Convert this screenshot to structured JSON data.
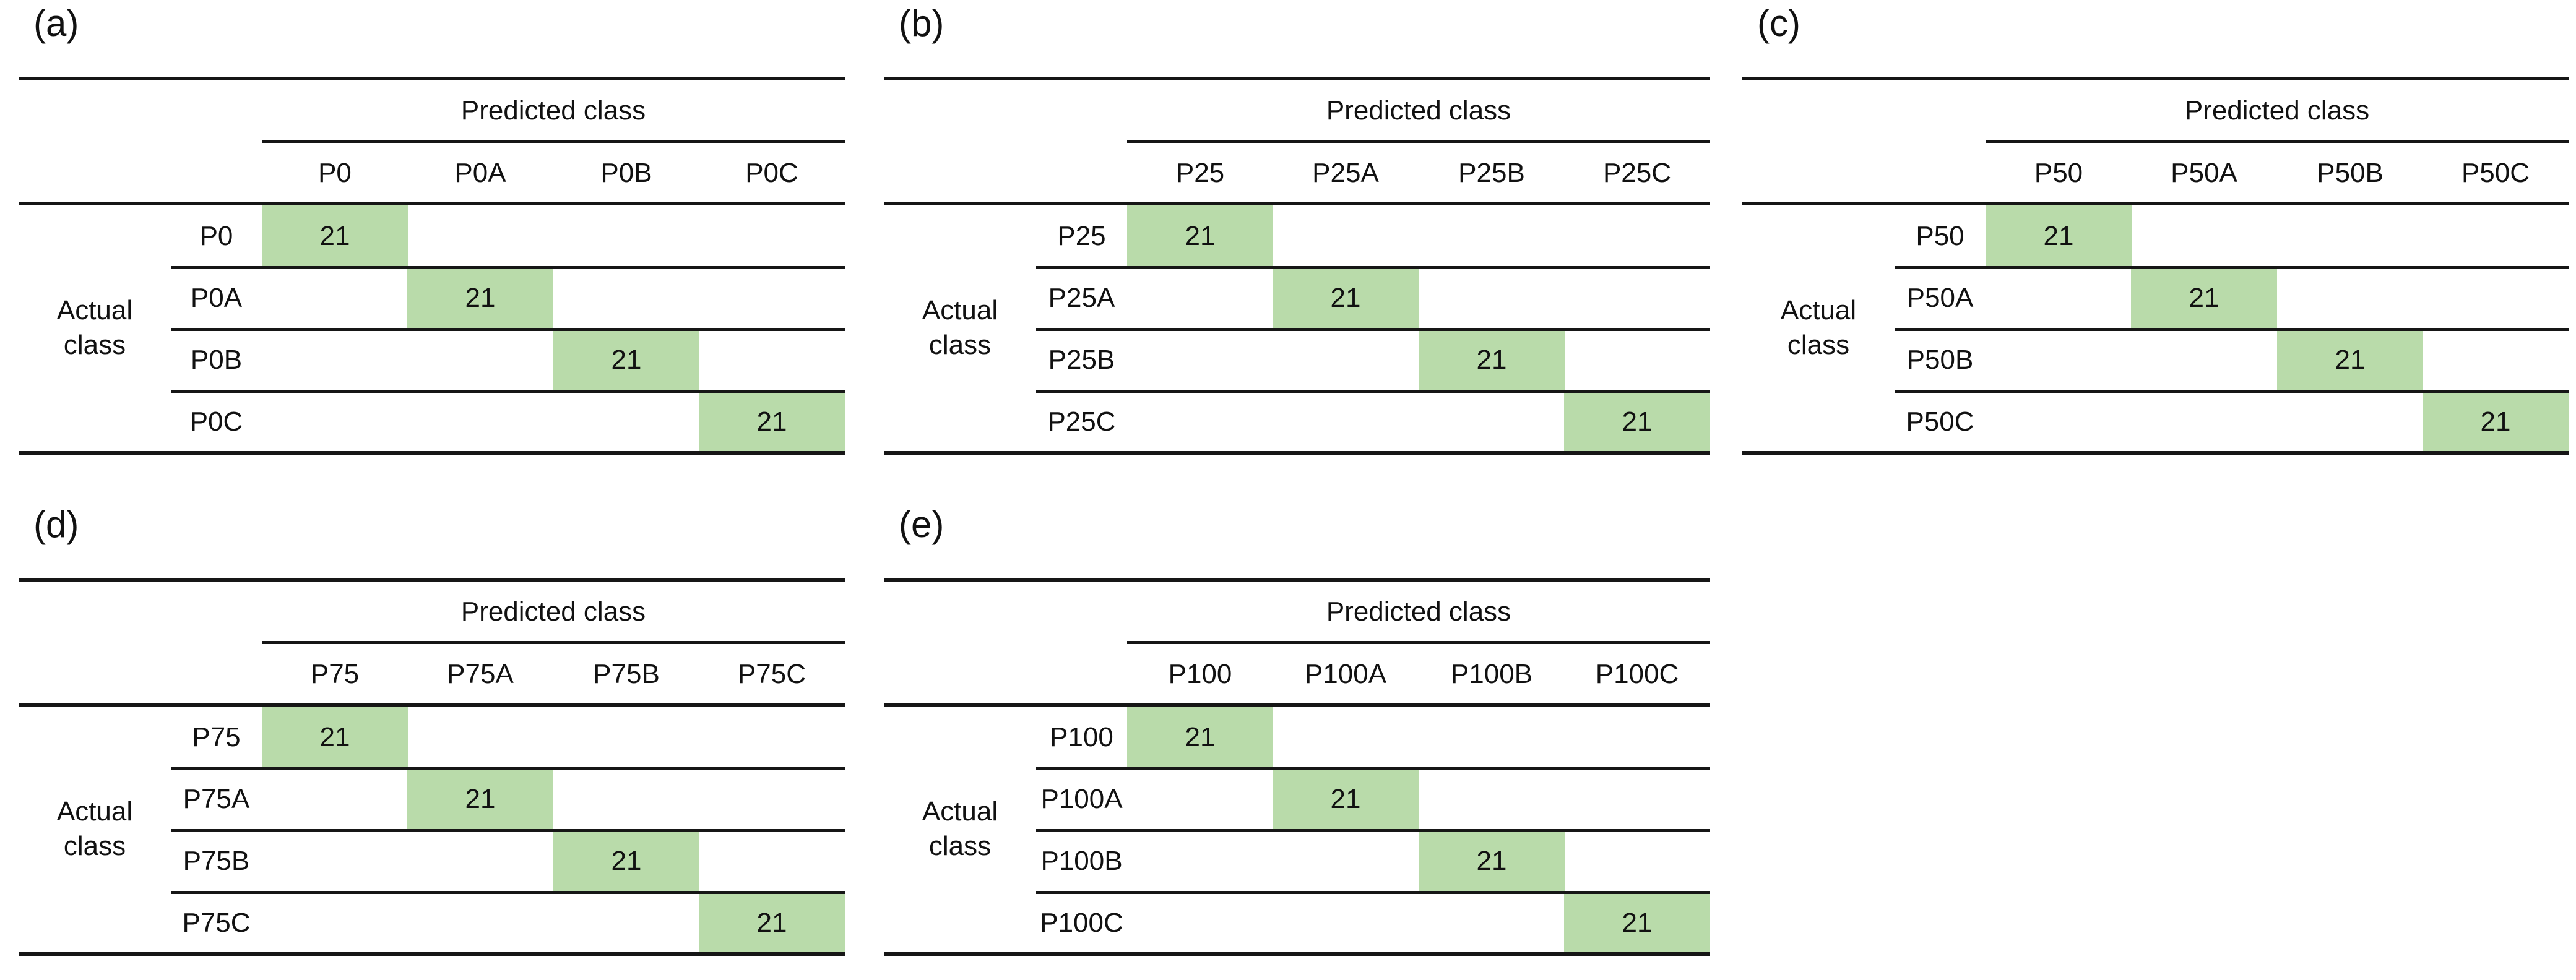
{
  "colors": {
    "highlight_green": "#b9dbaa",
    "rule_color": "#161616",
    "text_color": "#111111",
    "background": "#ffffff"
  },
  "shared": {
    "predicted_header": "Predicted class",
    "actual_line1": "Actual",
    "actual_line2": "class",
    "diagonal_value": "21"
  },
  "panels": [
    {
      "label": "(a)",
      "col_headers": [
        "P0",
        "P0A",
        "P0B",
        "P0C"
      ],
      "rows": [
        {
          "label": "P0",
          "cells": [
            "21",
            "",
            "",
            ""
          ]
        },
        {
          "label": "P0A",
          "cells": [
            "",
            "21",
            "",
            ""
          ]
        },
        {
          "label": "P0B",
          "cells": [
            "",
            "",
            "21",
            ""
          ]
        },
        {
          "label": "P0C",
          "cells": [
            "",
            "",
            "",
            "21"
          ]
        }
      ]
    },
    {
      "label": "(b)",
      "col_headers": [
        "P25",
        "P25A",
        "P25B",
        "P25C"
      ],
      "rows": [
        {
          "label": "P25",
          "cells": [
            "21",
            "",
            "",
            ""
          ]
        },
        {
          "label": "P25A",
          "cells": [
            "",
            "21",
            "",
            ""
          ]
        },
        {
          "label": "P25B",
          "cells": [
            "",
            "",
            "21",
            ""
          ]
        },
        {
          "label": "P25C",
          "cells": [
            "",
            "",
            "",
            "21"
          ]
        }
      ]
    },
    {
      "label": "(c)",
      "col_headers": [
        "P50",
        "P50A",
        "P50B",
        "P50C"
      ],
      "rows": [
        {
          "label": "P50",
          "cells": [
            "21",
            "",
            "",
            ""
          ]
        },
        {
          "label": "P50A",
          "cells": [
            "",
            "21",
            "",
            ""
          ]
        },
        {
          "label": "P50B",
          "cells": [
            "",
            "",
            "21",
            ""
          ]
        },
        {
          "label": "P50C",
          "cells": [
            "",
            "",
            "",
            "21"
          ]
        }
      ]
    },
    {
      "label": "(d)",
      "col_headers": [
        "P75",
        "P75A",
        "P75B",
        "P75C"
      ],
      "rows": [
        {
          "label": "P75",
          "cells": [
            "21",
            "",
            "",
            ""
          ]
        },
        {
          "label": "P75A",
          "cells": [
            "",
            "21",
            "",
            ""
          ]
        },
        {
          "label": "P75B",
          "cells": [
            "",
            "",
            "21",
            ""
          ]
        },
        {
          "label": "P75C",
          "cells": [
            "",
            "",
            "",
            "21"
          ]
        }
      ]
    },
    {
      "label": "(e)",
      "col_headers": [
        "P100",
        "P100A",
        "P100B",
        "P100C"
      ],
      "rows": [
        {
          "label": "P100",
          "cells": [
            "21",
            "",
            "",
            ""
          ]
        },
        {
          "label": "P100A",
          "cells": [
            "",
            "21",
            "",
            ""
          ]
        },
        {
          "label": "P100B",
          "cells": [
            "",
            "",
            "21",
            ""
          ]
        },
        {
          "label": "P100C",
          "cells": [
            "",
            "",
            "",
            "21"
          ]
        }
      ]
    }
  ],
  "chart_data": [
    {
      "type": "table",
      "title": "(a)",
      "col_axis_label": "Predicted class",
      "row_axis_label": "Actual class",
      "col_categories": [
        "P0",
        "P0A",
        "P0B",
        "P0C"
      ],
      "row_categories": [
        "P0",
        "P0A",
        "P0B",
        "P0C"
      ],
      "matrix": [
        [
          21,
          null,
          null,
          null
        ],
        [
          null,
          21,
          null,
          null
        ],
        [
          null,
          null,
          21,
          null
        ],
        [
          null,
          null,
          null,
          21
        ]
      ],
      "highlighted_cells": "diagonal",
      "highlight_color": "#b9dbaa"
    },
    {
      "type": "table",
      "title": "(b)",
      "col_axis_label": "Predicted class",
      "row_axis_label": "Actual class",
      "col_categories": [
        "P25",
        "P25A",
        "P25B",
        "P25C"
      ],
      "row_categories": [
        "P25",
        "P25A",
        "P25B",
        "P25C"
      ],
      "matrix": [
        [
          21,
          null,
          null,
          null
        ],
        [
          null,
          21,
          null,
          null
        ],
        [
          null,
          null,
          21,
          null
        ],
        [
          null,
          null,
          null,
          21
        ]
      ],
      "highlighted_cells": "diagonal",
      "highlight_color": "#b9dbaa"
    },
    {
      "type": "table",
      "title": "(c)",
      "col_axis_label": "Predicted class",
      "row_axis_label": "Actual class",
      "col_categories": [
        "P50",
        "P50A",
        "P50B",
        "P50C"
      ],
      "row_categories": [
        "P50",
        "P50A",
        "P50B",
        "P50C"
      ],
      "matrix": [
        [
          21,
          null,
          null,
          null
        ],
        [
          null,
          21,
          null,
          null
        ],
        [
          null,
          null,
          21,
          null
        ],
        [
          null,
          null,
          null,
          21
        ]
      ],
      "highlighted_cells": "diagonal",
      "highlight_color": "#b9dbaa"
    },
    {
      "type": "table",
      "title": "(d)",
      "col_axis_label": "Predicted class",
      "row_axis_label": "Actual class",
      "col_categories": [
        "P75",
        "P75A",
        "P75B",
        "P75C"
      ],
      "row_categories": [
        "P75",
        "P75A",
        "P75B",
        "P75C"
      ],
      "matrix": [
        [
          21,
          null,
          null,
          null
        ],
        [
          null,
          21,
          null,
          null
        ],
        [
          null,
          null,
          21,
          null
        ],
        [
          null,
          null,
          null,
          21
        ]
      ],
      "highlighted_cells": "diagonal",
      "highlight_color": "#b9dbaa"
    },
    {
      "type": "table",
      "title": "(e)",
      "col_axis_label": "Predicted class",
      "row_axis_label": "Actual class",
      "col_categories": [
        "P100",
        "P100A",
        "P100B",
        "P100C"
      ],
      "row_categories": [
        "P100",
        "P100A",
        "P100B",
        "P100C"
      ],
      "matrix": [
        [
          21,
          null,
          null,
          null
        ],
        [
          null,
          21,
          null,
          null
        ],
        [
          null,
          null,
          21,
          null
        ],
        [
          null,
          null,
          null,
          21
        ]
      ],
      "highlighted_cells": "diagonal",
      "highlight_color": "#b9dbaa"
    }
  ]
}
